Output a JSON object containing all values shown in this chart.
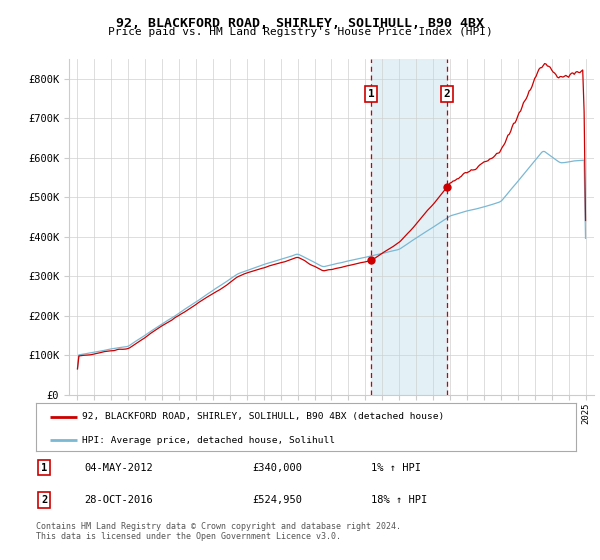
{
  "title": "92, BLACKFORD ROAD, SHIRLEY, SOLIHULL, B90 4BX",
  "subtitle": "Price paid vs. HM Land Registry's House Price Index (HPI)",
  "ylim": [
    0,
    850000
  ],
  "yticks": [
    0,
    100000,
    200000,
    300000,
    400000,
    500000,
    600000,
    700000,
    800000
  ],
  "ytick_labels": [
    "£0",
    "£100K",
    "£200K",
    "£300K",
    "£400K",
    "£500K",
    "£600K",
    "£700K",
    "£800K"
  ],
  "sale1_date": 2012.34,
  "sale1_price": 340000,
  "sale2_date": 2016.83,
  "sale2_price": 524950,
  "hpi_line_color": "#7ab8d4",
  "price_line_color": "#cc0000",
  "shade_color": "#ddeef6",
  "legend_label1": "92, BLACKFORD ROAD, SHIRLEY, SOLIHULL, B90 4BX (detached house)",
  "legend_label2": "HPI: Average price, detached house, Solihull",
  "footer": "Contains HM Land Registry data © Crown copyright and database right 2024.\nThis data is licensed under the Open Government Licence v3.0.",
  "xlim_start": 1994.5,
  "xlim_end": 2025.5
}
